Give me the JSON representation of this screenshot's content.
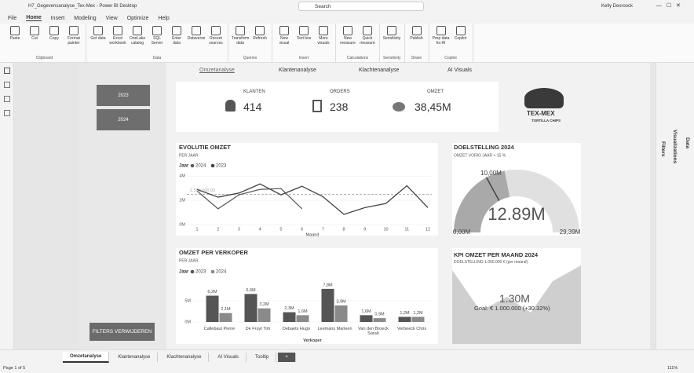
{
  "titlebar": {
    "file": "H7_Gegevensanalyse_Tex-Mex - Power BI Desktop",
    "search": "Search",
    "user": "Kelly Desroock"
  },
  "menu": [
    "File",
    "Home",
    "Insert",
    "Modeling",
    "View",
    "Optimize",
    "Help"
  ],
  "ribbon": [
    {
      "label": "Clipboard",
      "buttons": [
        "Paste",
        "Cut",
        "Copy",
        "Format painter"
      ]
    },
    {
      "label": "Data",
      "buttons": [
        "Get data",
        "Excel workbook",
        "OneLake catalog",
        "SQL Server",
        "Enter data",
        "Dataverse",
        "Recent sources"
      ]
    },
    {
      "label": "Queries",
      "buttons": [
        "Transform data",
        "Refresh"
      ]
    },
    {
      "label": "Insert",
      "buttons": [
        "New visual",
        "Text box",
        "More visuals"
      ]
    },
    {
      "label": "Calculations",
      "buttons": [
        "New measure",
        "Quick measure"
      ]
    },
    {
      "label": "Sensitivity",
      "buttons": [
        "Sensitivity"
      ]
    },
    {
      "label": "Share",
      "buttons": [
        "Publish"
      ]
    },
    {
      "label": "Copilot",
      "buttons": [
        "Prep data for AI",
        "Copilot"
      ]
    }
  ],
  "report": {
    "nav": [
      "Omzetanalyse",
      "Klantenanalyse",
      "Klachtenanalyse",
      "AI Visuals"
    ],
    "slicer": [
      "2023",
      "2024"
    ],
    "reset_button": "FILTERS VERWIJDEREN",
    "cards": [
      {
        "label": "KLANTEN",
        "value": "414"
      },
      {
        "label": "ORDERS",
        "value": "238"
      },
      {
        "label": "OMZET",
        "value": "38,45M"
      }
    ],
    "logo": {
      "name": "TEX-MEX",
      "tagline": "TORTILLA CHIPS"
    },
    "kpi": {
      "title": "KPI OMZET PER MAAND 2024",
      "subtitle": "DOELSTELLING 1.000.000 € (per maand)",
      "value": "1.30M",
      "goal": "Goal: € 1.000.000 (+30.32%)"
    }
  },
  "chart_data": [
    {
      "type": "line",
      "title": "EVOLUTIE OMZET",
      "subtitle": "PER JAAR",
      "legend_title": "Jaar",
      "xlabel": "Maand",
      "x": [
        1,
        2,
        3,
        4,
        5,
        6,
        7,
        8,
        9,
        10,
        11,
        12
      ],
      "xticks": [
        1,
        2,
        3,
        4,
        5,
        6,
        7,
        8,
        9,
        10,
        11,
        12
      ],
      "series": [
        {
          "name": "2024",
          "color": "#5e5e5e",
          "values": [
            2.77,
            1.3,
            2.45,
            2.9,
            2.97,
            1.3,
            null,
            null,
            null,
            null,
            null,
            null
          ]
        },
        {
          "name": "2023",
          "color": "#444444",
          "values": [
            2.9,
            2.26,
            2.6,
            3.35,
            2.45,
            3.16,
            2.3,
            0.84,
            1.4,
            1.74,
            3.2,
            1.4
          ]
        }
      ],
      "reference_line": {
        "value": 2.5,
        "label": "2.500.000,00"
      },
      "ylim": [
        0,
        4.4
      ],
      "yticks": [
        {
          "value": 0,
          "label": "0M"
        },
        {
          "value": 2,
          "label": "2M"
        },
        {
          "value": 4,
          "label": "4M"
        }
      ]
    },
    {
      "type": "bar",
      "title": "OMZET PER VERKOPER",
      "subtitle": "PER JAAR",
      "legend_title": "Jaar",
      "xlabel": "Verkoper",
      "categories": [
        "Callebaut Pierre",
        "De Fruyt Tim",
        "Debaets Hugo",
        "Leemans Marleen",
        "Van den Broeck Sarah",
        "Verbeeck Chris"
      ],
      "series": [
        {
          "name": "2023",
          "color": "#555555",
          "values": [
            6.2,
            6.6,
            2.3,
            7.8,
            1.6,
            1.2
          ],
          "value_labels": [
            "6,2M",
            "6,6M",
            "2,3M",
            "7,8M",
            "1,6M",
            "1,2M"
          ]
        },
        {
          "name": "2024",
          "color": "#8a8a8a",
          "values": [
            2.1,
            3.2,
            1.6,
            3.9,
            0.9,
            1.2
          ],
          "value_labels": [
            "2,1M",
            "3,2M",
            "1,6M",
            "3,9M",
            "0,9M",
            "1,2M"
          ]
        }
      ],
      "ylim": [
        0,
        10
      ],
      "yticks": [
        {
          "value": 0,
          "label": "0M"
        },
        {
          "value": 5,
          "label": "5M"
        }
      ]
    },
    {
      "type": "gauge",
      "title": "DOELSTELLING 2024",
      "subtitle": "OMZET VORIG JAAR + 15 %",
      "value": 12.89,
      "value_label": "12.89M",
      "range": [
        0,
        29.39
      ],
      "range_labels": [
        "0,00M",
        "29,39M"
      ],
      "target": 10,
      "target_label": "10,00M"
    }
  ],
  "panes": [
    "Filters",
    "Visualizations",
    "Data"
  ],
  "pages": [
    "Omzetanalyse",
    "Klantenanalyse",
    "Klachtenanalyse",
    "AI Visuals",
    "Tooltip"
  ],
  "status": {
    "page": "Page 1 of 5",
    "zoom": "111%"
  }
}
